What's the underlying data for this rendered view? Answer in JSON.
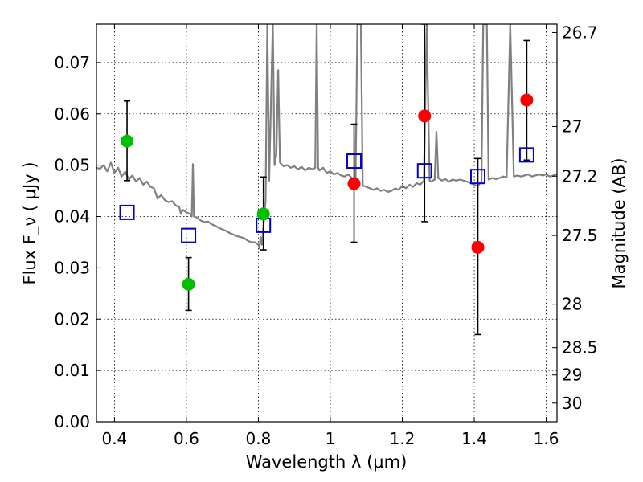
{
  "chart_data": {
    "type": "scatter",
    "title": "",
    "xlabel": "Wavelength  λ (μm)",
    "ylabel": "Flux  F_ν  ( μJy )",
    "ylabel_right": "Magnitude (AB)",
    "xlim": [
      0.35,
      1.63
    ],
    "ylim": [
      0.0,
      0.0775
    ],
    "grid": true,
    "x_ticks": [
      0.4,
      0.6,
      0.8,
      1.0,
      1.2,
      1.4,
      1.6
    ],
    "x_tick_labels": [
      "0.4",
      "0.6",
      "0.8",
      "1",
      "1.2",
      "1.4",
      "1.6"
    ],
    "y_ticks": [
      0.0,
      0.01,
      0.02,
      0.03,
      0.04,
      0.05,
      0.06,
      0.07
    ],
    "y_tick_labels": [
      "0.00",
      "0.01",
      "0.02",
      "0.03",
      "0.04",
      "0.05",
      "0.06",
      "0.07"
    ],
    "right_ticks": [
      26.7,
      27,
      27.2,
      27.5,
      28,
      28.5,
      29,
      30
    ],
    "right_tick_labels": [
      "26.7",
      "27",
      "27.2",
      "27.5",
      "28",
      "28.5",
      "29",
      "30"
    ],
    "colors": {
      "model": "#808080",
      "green": "#00c000",
      "red": "#ff0000",
      "square": "#0000cc",
      "errorbar": "#000000",
      "grid": "#000000"
    },
    "series": [
      {
        "marker": "circle",
        "color_key": "green",
        "points": [
          {
            "x": 0.435,
            "y": 0.0547,
            "ylo": 0.047,
            "yhi": 0.0625
          },
          {
            "x": 0.606,
            "y": 0.0268,
            "ylo": 0.0217,
            "yhi": 0.032
          },
          {
            "x": 0.814,
            "y": 0.0405,
            "ylo": 0.0335,
            "yhi": 0.0477
          }
        ]
      },
      {
        "marker": "circle",
        "color_key": "red",
        "points": [
          {
            "x": 1.066,
            "y": 0.0464,
            "ylo": 0.035,
            "yhi": 0.058
          },
          {
            "x": 1.262,
            "y": 0.0596,
            "ylo": 0.039,
            "yhi": 0.0775
          },
          {
            "x": 1.41,
            "y": 0.034,
            "ylo": 0.017,
            "yhi": 0.0513
          },
          {
            "x": 1.546,
            "y": 0.0627,
            "ylo": 0.051,
            "yhi": 0.0743
          }
        ]
      },
      {
        "marker": "square",
        "color_key": "square",
        "points": [
          {
            "x": 0.435,
            "y": 0.0408
          },
          {
            "x": 0.606,
            "y": 0.0363
          },
          {
            "x": 0.814,
            "y": 0.0383
          },
          {
            "x": 1.066,
            "y": 0.0508
          },
          {
            "x": 1.262,
            "y": 0.0489
          },
          {
            "x": 1.41,
            "y": 0.0478
          },
          {
            "x": 1.546,
            "y": 0.052
          }
        ]
      }
    ],
    "model_spectrum": {
      "points": [
        [
          0.35,
          0.0495
        ],
        [
          0.36,
          0.0493
        ],
        [
          0.37,
          0.05
        ],
        [
          0.38,
          0.0488
        ],
        [
          0.39,
          0.0505
        ],
        [
          0.4,
          0.0485
        ],
        [
          0.41,
          0.0495
        ],
        [
          0.42,
          0.0478
        ],
        [
          0.43,
          0.0487
        ],
        [
          0.44,
          0.0472
        ],
        [
          0.45,
          0.048
        ],
        [
          0.46,
          0.0468
        ],
        [
          0.47,
          0.0475
        ],
        [
          0.48,
          0.0462
        ],
        [
          0.49,
          0.0468
        ],
        [
          0.5,
          0.0458
        ],
        [
          0.51,
          0.0455
        ],
        [
          0.52,
          0.0435
        ],
        [
          0.53,
          0.0442
        ],
        [
          0.54,
          0.0432
        ],
        [
          0.55,
          0.0428
        ],
        [
          0.56,
          0.043
        ],
        [
          0.57,
          0.0422
        ],
        [
          0.58,
          0.0418
        ],
        [
          0.585,
          0.0405
        ],
        [
          0.59,
          0.0413
        ],
        [
          0.6,
          0.0408
        ],
        [
          0.61,
          0.0405
        ],
        [
          0.615,
          0.04
        ],
        [
          0.618,
          0.0502
        ],
        [
          0.621,
          0.04
        ],
        [
          0.63,
          0.0398
        ],
        [
          0.64,
          0.0392
        ],
        [
          0.65,
          0.0389
        ],
        [
          0.66,
          0.039
        ],
        [
          0.67,
          0.0385
        ],
        [
          0.68,
          0.0382
        ],
        [
          0.69,
          0.0378
        ],
        [
          0.7,
          0.0375
        ],
        [
          0.71,
          0.0372
        ],
        [
          0.72,
          0.0368
        ],
        [
          0.73,
          0.0365
        ],
        [
          0.74,
          0.0362
        ],
        [
          0.75,
          0.036
        ],
        [
          0.76,
          0.0358
        ],
        [
          0.77,
          0.0353
        ],
        [
          0.78,
          0.035
        ],
        [
          0.79,
          0.035
        ],
        [
          0.8,
          0.0345
        ],
        [
          0.803,
          0.0338
        ],
        [
          0.806,
          0.036
        ],
        [
          0.81,
          0.0345
        ],
        [
          0.815,
          0.039
        ],
        [
          0.82,
          0.043
        ],
        [
          0.825,
          0.0775
        ],
        [
          0.83,
          0.047
        ],
        [
          0.84,
          0.0775
        ],
        [
          0.845,
          0.05
        ],
        [
          0.85,
          0.052
        ],
        [
          0.855,
          0.0685
        ],
        [
          0.86,
          0.0505
        ],
        [
          0.87,
          0.0498
        ],
        [
          0.88,
          0.05
        ],
        [
          0.89,
          0.0495
        ],
        [
          0.9,
          0.0498
        ],
        [
          0.91,
          0.0492
        ],
        [
          0.92,
          0.0497
        ],
        [
          0.93,
          0.049
        ],
        [
          0.94,
          0.0495
        ],
        [
          0.95,
          0.0492
        ],
        [
          0.958,
          0.0495
        ],
        [
          0.962,
          0.0775
        ],
        [
          0.966,
          0.0495
        ],
        [
          0.97,
          0.049
        ],
        [
          0.98,
          0.0495
        ],
        [
          0.99,
          0.0485
        ],
        [
          1.0,
          0.0488
        ],
        [
          1.01,
          0.0482
        ],
        [
          1.02,
          0.0485
        ],
        [
          1.03,
          0.048
        ],
        [
          1.04,
          0.0478
        ],
        [
          1.05,
          0.0482
        ],
        [
          1.06,
          0.0475
        ],
        [
          1.07,
          0.046
        ],
        [
          1.075,
          0.0775
        ],
        [
          1.085,
          0.0775
        ],
        [
          1.09,
          0.046
        ],
        [
          1.1,
          0.0458
        ],
        [
          1.11,
          0.0455
        ],
        [
          1.12,
          0.0452
        ],
        [
          1.13,
          0.0455
        ],
        [
          1.14,
          0.045
        ],
        [
          1.15,
          0.0452
        ],
        [
          1.16,
          0.0448
        ],
        [
          1.17,
          0.045
        ],
        [
          1.18,
          0.0455
        ],
        [
          1.19,
          0.0452
        ],
        [
          1.2,
          0.046
        ],
        [
          1.21,
          0.0455
        ],
        [
          1.22,
          0.0462
        ],
        [
          1.23,
          0.0458
        ],
        [
          1.24,
          0.0465
        ],
        [
          1.25,
          0.0462
        ],
        [
          1.26,
          0.047
        ],
        [
          1.268,
          0.0775
        ],
        [
          1.276,
          0.047
        ],
        [
          1.28,
          0.0468
        ],
        [
          1.29,
          0.0472
        ],
        [
          1.295,
          0.0565
        ],
        [
          1.3,
          0.0475
        ],
        [
          1.31,
          0.047
        ],
        [
          1.32,
          0.0473
        ],
        [
          1.33,
          0.0468
        ],
        [
          1.34,
          0.0472
        ],
        [
          1.35,
          0.047
        ],
        [
          1.36,
          0.0472
        ],
        [
          1.37,
          0.047
        ],
        [
          1.38,
          0.0468
        ],
        [
          1.39,
          0.0465
        ],
        [
          1.4,
          0.0462
        ],
        [
          1.405,
          0.046
        ],
        [
          1.41,
          0.046
        ],
        [
          1.42,
          0.0468
        ],
        [
          1.425,
          0.0775
        ],
        [
          1.435,
          0.0775
        ],
        [
          1.44,
          0.0472
        ],
        [
          1.45,
          0.0475
        ],
        [
          1.46,
          0.0473
        ],
        [
          1.47,
          0.0475
        ],
        [
          1.48,
          0.0478
        ],
        [
          1.49,
          0.0476
        ],
        [
          1.5,
          0.0775
        ],
        [
          1.51,
          0.0478
        ],
        [
          1.52,
          0.048
        ],
        [
          1.53,
          0.0478
        ],
        [
          1.54,
          0.048
        ],
        [
          1.55,
          0.0482
        ],
        [
          1.56,
          0.0478
        ],
        [
          1.57,
          0.048
        ],
        [
          1.58,
          0.0482
        ],
        [
          1.59,
          0.048
        ],
        [
          1.6,
          0.0482
        ],
        [
          1.61,
          0.0478
        ],
        [
          1.62,
          0.048
        ],
        [
          1.63,
          0.0482
        ]
      ]
    }
  }
}
